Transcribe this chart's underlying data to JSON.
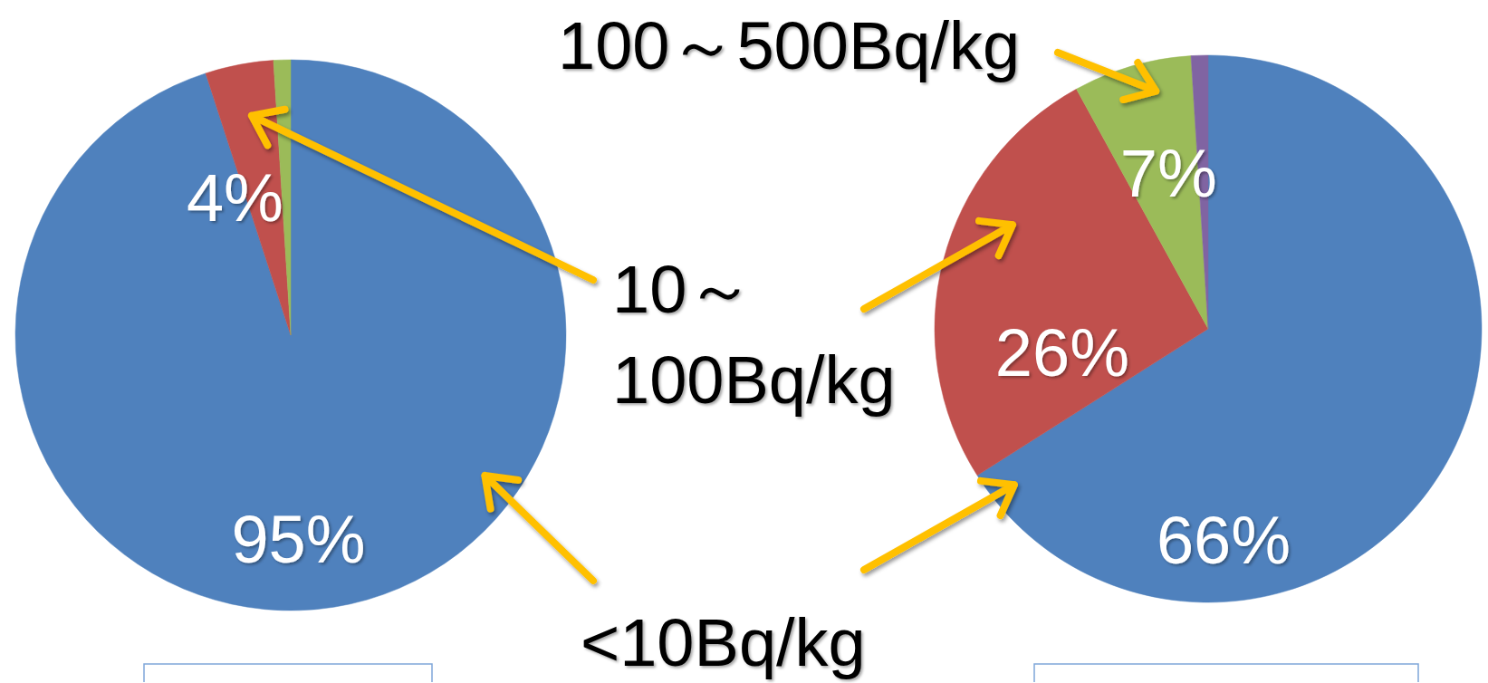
{
  "chart_data": [
    {
      "type": "pie",
      "categories": [
        "<10Bq/kg",
        "10～100Bq/kg",
        null
      ],
      "values": [
        95,
        4,
        1
      ],
      "colors": [
        "#4f81bd",
        "#c0504d",
        "#9bbb59"
      ],
      "value_labels": [
        "95%",
        "4%",
        null
      ]
    },
    {
      "type": "pie",
      "categories": [
        null,
        null,
        "100～500Bq/kg",
        null
      ],
      "values": [
        66,
        26,
        7,
        1
      ],
      "colors": [
        "#4f81bd",
        "#c0504d",
        "#9bbb59",
        "#8064a2"
      ],
      "value_labels": [
        "66%",
        "26%",
        "7%",
        null
      ]
    }
  ]
}
